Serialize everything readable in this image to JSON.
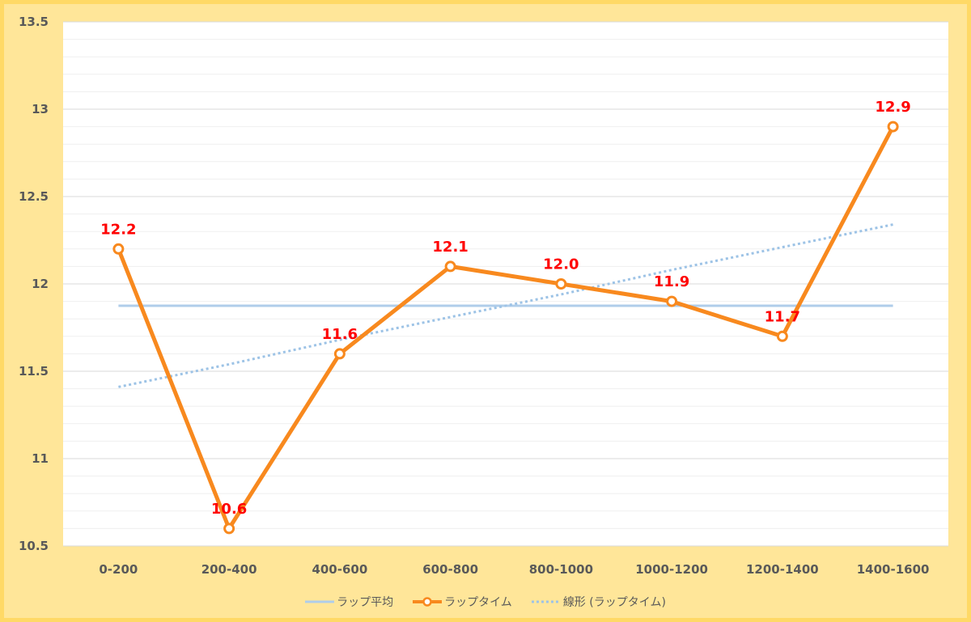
{
  "chart_data": {
    "type": "line",
    "categories": [
      "0-200",
      "200-400",
      "400-600",
      "600-800",
      "800-1000",
      "1000-1200",
      "1200-1400",
      "1400-1600"
    ],
    "ylim": [
      10.5,
      13.5
    ],
    "yticks": [
      "10.5",
      "11",
      "11.5",
      "12",
      "12.5",
      "13",
      "13.5"
    ],
    "grid": {
      "major": true,
      "minor_step": 0.1
    },
    "legend": "bottom",
    "series": [
      {
        "name": "ラップ平均",
        "values": [
          11.875,
          11.875,
          11.875,
          11.875,
          11.875,
          11.875,
          11.875,
          11.875
        ],
        "color": "#AFCDEA",
        "dotted": false,
        "markers": false
      },
      {
        "name": "ラップタイム",
        "values": [
          12.2,
          10.6,
          11.6,
          12.1,
          12.0,
          11.9,
          11.7,
          12.9
        ],
        "data_labels": [
          "12.2",
          "10.6",
          "11.6",
          "12.1",
          "12.0",
          "11.9",
          "11.7",
          "12.9"
        ],
        "color": "#F8891E",
        "label_color": "#FF0000",
        "dotted": false,
        "markers": true
      },
      {
        "name": "線形 (ラップタイム)",
        "trendline": true,
        "values": [
          11.41,
          11.54,
          11.68,
          11.81,
          11.94,
          12.08,
          12.21,
          12.34
        ],
        "color": "#9DC3E6",
        "dotted": true,
        "markers": false
      }
    ]
  },
  "colors": {
    "frame_fill": "#FFE699",
    "frame_border": "#FFD966",
    "plot_bg": "#FFFFFF",
    "grid_major": "#D9D9D9",
    "grid_minor": "#EFEFEF",
    "tick_text": "#595959"
  }
}
